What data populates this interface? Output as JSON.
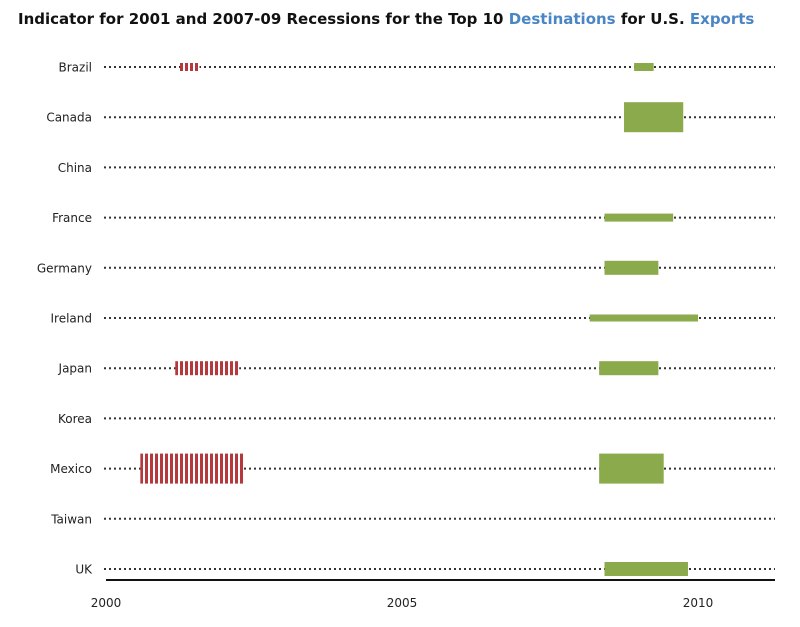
{
  "title": {
    "part1": "Indicator for 2001 and 2007-09 Recessions for the Top 10 ",
    "highlight1": "Destinations",
    "part2": " for U.S. ",
    "highlight2": "Exports"
  },
  "colors": {
    "recession_2001": "#b5383c",
    "recession_2007_09": "#8aaa4b",
    "title_highlight": "#4a86c5",
    "dots": "#333333"
  },
  "chart_data": {
    "type": "bar",
    "title": "Indicator for 2001 and 2007-09 Recessions for the Top 10 Destinations for U.S. Exports",
    "xlabel": "",
    "ylabel": "",
    "xlim": [
      2000.0,
      2011.3
    ],
    "xticks": [
      2000,
      2005,
      2010
    ],
    "tick_labels": [
      "2000",
      "2005",
      "2010"
    ],
    "categories": [
      "Brazil",
      "Canada",
      "China",
      "France",
      "Germany",
      "Ireland",
      "Japan",
      "Korea",
      "Mexico",
      "Taiwan",
      "UK"
    ],
    "series": [
      {
        "key": "recession_2001",
        "bars": [
          {
            "country": "Brazil",
            "start": 2001.25,
            "end": 2001.58,
            "intensity": "small"
          },
          {
            "country": "Japan",
            "start": 2001.17,
            "end": 2002.25,
            "intensity": "medium"
          },
          {
            "country": "Mexico",
            "start": 2000.58,
            "end": 2002.33,
            "intensity": "large"
          }
        ]
      },
      {
        "key": "recession_2007_09",
        "bars": [
          {
            "country": "Brazil",
            "start": 2008.92,
            "end": 2009.25,
            "intensity": "small"
          },
          {
            "country": "Canada",
            "start": 2008.75,
            "end": 2009.75,
            "intensity": "large"
          },
          {
            "country": "France",
            "start": 2008.42,
            "end": 2009.58,
            "intensity": "small"
          },
          {
            "country": "Germany",
            "start": 2008.42,
            "end": 2009.33,
            "intensity": "medium"
          },
          {
            "country": "Ireland",
            "start": 2008.17,
            "end": 2010.0,
            "intensity": "tiny"
          },
          {
            "country": "Japan",
            "start": 2008.33,
            "end": 2009.33,
            "intensity": "medium"
          },
          {
            "country": "Mexico",
            "start": 2008.33,
            "end": 2009.42,
            "intensity": "large"
          },
          {
            "country": "UK",
            "start": 2008.42,
            "end": 2009.83,
            "intensity": "medium"
          }
        ]
      }
    ]
  }
}
